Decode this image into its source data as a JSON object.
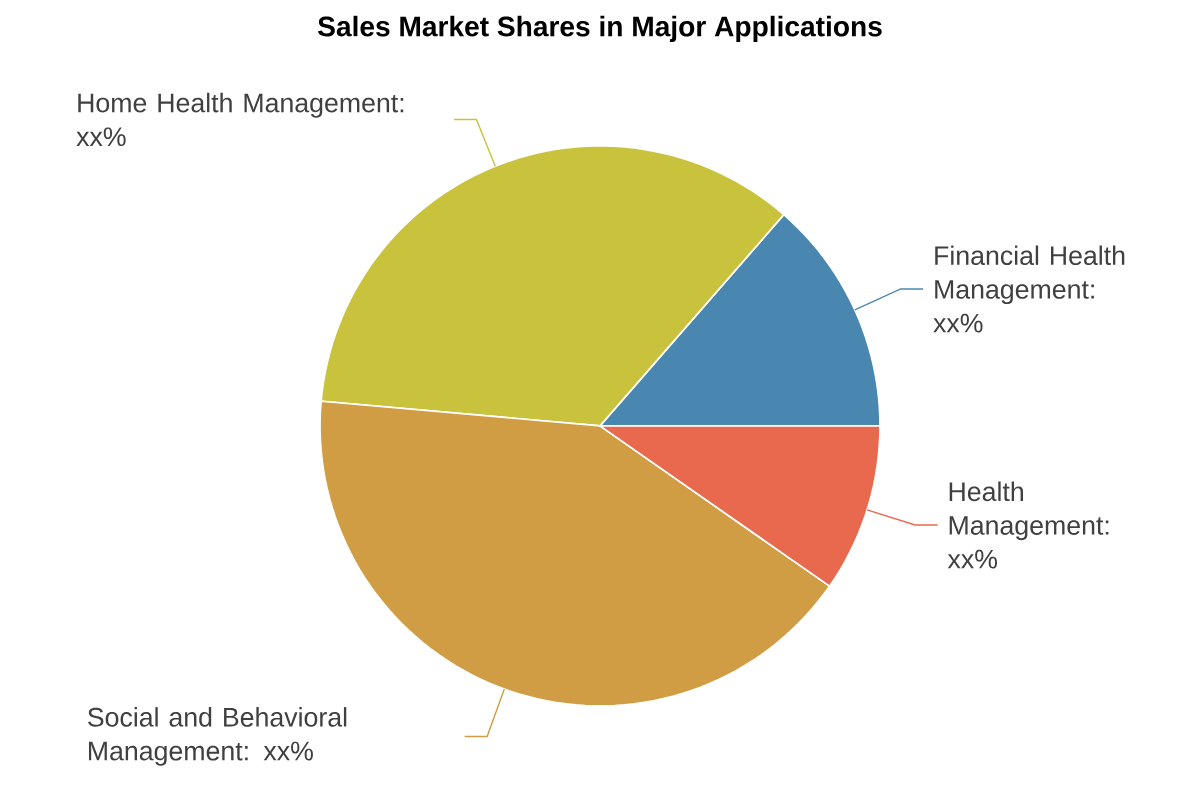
{
  "chart_data": {
    "type": "pie",
    "title": "Sales Market Shares in Major Applications",
    "categories": [
      "Financial Health Management: xx%",
      "Home Health Management: xx%",
      "Social and Behavioral Management: xx%",
      "Health Management: xx%"
    ],
    "values": [
      13.6,
      35,
      41.7,
      9.7
    ],
    "colors": [
      "#4a87b0",
      "#c9c23c",
      "#d09d44",
      "#e8694e"
    ]
  }
}
